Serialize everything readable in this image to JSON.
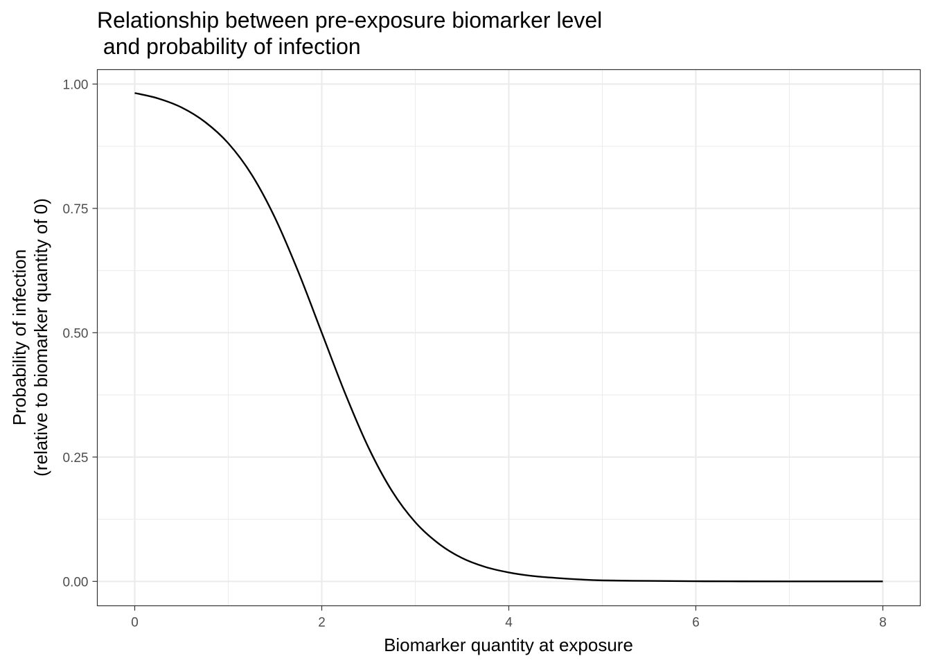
{
  "chart_data": {
    "type": "line",
    "title_lines": [
      "Relationship between pre-exposure biomarker level",
      " and probability of infection"
    ],
    "xlabel": "Biomarker quantity at exposure",
    "ylabel_lines": [
      "Probability of infection",
      "(relative to biomarker quantity of 0)"
    ],
    "xlim": [
      -0.4,
      8.4
    ],
    "ylim": [
      -0.049,
      1.029
    ],
    "x_ticks": [
      0,
      2,
      4,
      6,
      8
    ],
    "x_tick_labels": [
      "0",
      "2",
      "4",
      "6",
      "8"
    ],
    "y_ticks": [
      0,
      0.25,
      0.5,
      0.75,
      1
    ],
    "y_tick_labels": [
      "0.00",
      "0.25",
      "0.50",
      "0.75",
      "1.00"
    ],
    "grid": true,
    "series": [
      {
        "color": "#000000",
        "x": [
          0,
          0.25,
          0.5,
          0.75,
          1,
          1.25,
          1.5,
          1.75,
          2,
          2.25,
          2.5,
          2.75,
          3,
          3.25,
          3.5,
          3.75,
          4,
          4.25,
          4.5,
          4.75,
          5,
          5.5,
          6,
          6.5,
          7,
          7.5,
          8
        ],
        "y": [
          0.982,
          0.971,
          0.953,
          0.924,
          0.881,
          0.818,
          0.731,
          0.622,
          0.5,
          0.378,
          0.269,
          0.182,
          0.119,
          0.076,
          0.047,
          0.029,
          0.018,
          0.011,
          0.007,
          0.004,
          0.002,
          0.001,
          0.0003,
          0.0001,
          0.0,
          0.0,
          0.0
        ]
      }
    ]
  }
}
